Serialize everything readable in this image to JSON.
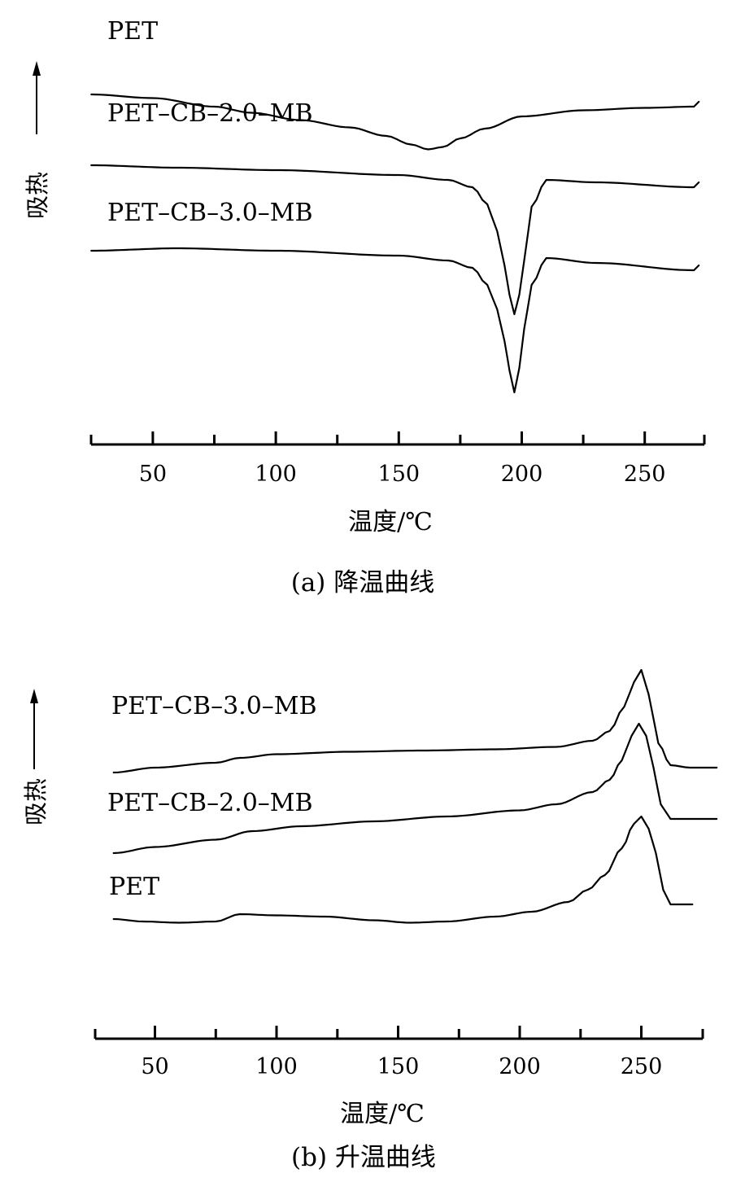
{
  "chart_data": [
    {
      "id": "cooling",
      "type": "line",
      "caption": "(a) 降温曲线",
      "xlabel": "温度/℃",
      "ylabel": "吸热",
      "xlim": [
        25,
        275
      ],
      "xticks": [
        50,
        100,
        150,
        200,
        250
      ],
      "y_units": "relative heat flow (arbitrary, endotherm up)",
      "series": [
        {
          "name": "PET",
          "x": [
            25,
            50,
            75,
            90,
            110,
            130,
            145,
            155,
            162,
            168,
            175,
            185,
            200,
            225,
            250,
            270,
            272
          ],
          "y": [
            78,
            76.5,
            73,
            70.5,
            67.5,
            64.5,
            61,
            57.5,
            55.5,
            56.5,
            60,
            64,
            69,
            71.5,
            72.5,
            73,
            75
          ]
        },
        {
          "name": "PET–CB–2.0–MB",
          "x": [
            25,
            60,
            100,
            150,
            170,
            180,
            186,
            190,
            193,
            195,
            197,
            199,
            201,
            204,
            210,
            230,
            270,
            272
          ],
          "y": [
            49,
            48,
            47,
            45,
            43,
            40,
            33,
            22,
            8,
            -4,
            -12,
            -4,
            10,
            32,
            43,
            42,
            40,
            42
          ]
        },
        {
          "name": "PET–CB–3.0–MB",
          "x": [
            25,
            60,
            100,
            150,
            170,
            180,
            186,
            190,
            193,
            195,
            197,
            199,
            201,
            204,
            210,
            230,
            270,
            272
          ],
          "y": [
            14,
            15,
            14,
            12,
            10,
            7,
            0,
            -10,
            -23,
            -35,
            -44,
            -34,
            -18,
            0,
            11,
            9,
            6,
            8
          ]
        }
      ]
    },
    {
      "id": "heating",
      "type": "line",
      "caption": "(b) 升温曲线",
      "xlabel": "温度/℃",
      "ylabel": "吸热",
      "xlim": [
        25,
        275
      ],
      "xticks": [
        50,
        100,
        150,
        200,
        250
      ],
      "y_units": "relative heat flow (arbitrary, endotherm up)",
      "series": [
        {
          "name": "PET–CB–3.0–MB",
          "x": [
            33,
            50,
            75,
            85,
            100,
            130,
            160,
            190,
            215,
            230,
            237,
            243,
            247,
            250,
            253,
            257,
            262,
            270,
            281
          ],
          "y": [
            53,
            55,
            57,
            59,
            60.5,
            61.5,
            62,
            62.5,
            63.5,
            66,
            70,
            80,
            90,
            95,
            85,
            65,
            56,
            55,
            55
          ]
        },
        {
          "name": "PET–CB–2.0–MB",
          "x": [
            33,
            50,
            75,
            90,
            110,
            140,
            170,
            200,
            215,
            230,
            237,
            242,
            246,
            249,
            252,
            255,
            258,
            262,
            270,
            281
          ],
          "y": [
            20,
            22.5,
            25.5,
            29,
            31,
            33,
            35,
            37.5,
            40,
            45,
            50,
            58,
            68,
            73,
            68,
            55,
            40,
            34,
            34,
            34
          ]
        },
        {
          "name": "PET",
          "x": [
            33,
            45,
            60,
            75,
            85,
            100,
            120,
            140,
            155,
            170,
            190,
            205,
            220,
            228,
            235,
            242,
            247,
            250,
            253,
            256,
            259,
            262,
            268,
            271
          ],
          "y": [
            -7,
            -8,
            -8.5,
            -8,
            -5,
            -5.5,
            -6,
            -7.5,
            -8.5,
            -8,
            -6,
            -4,
            0,
            5,
            11,
            22,
            32,
            35,
            30,
            20,
            5,
            -1,
            -1,
            -1
          ]
        }
      ]
    }
  ]
}
